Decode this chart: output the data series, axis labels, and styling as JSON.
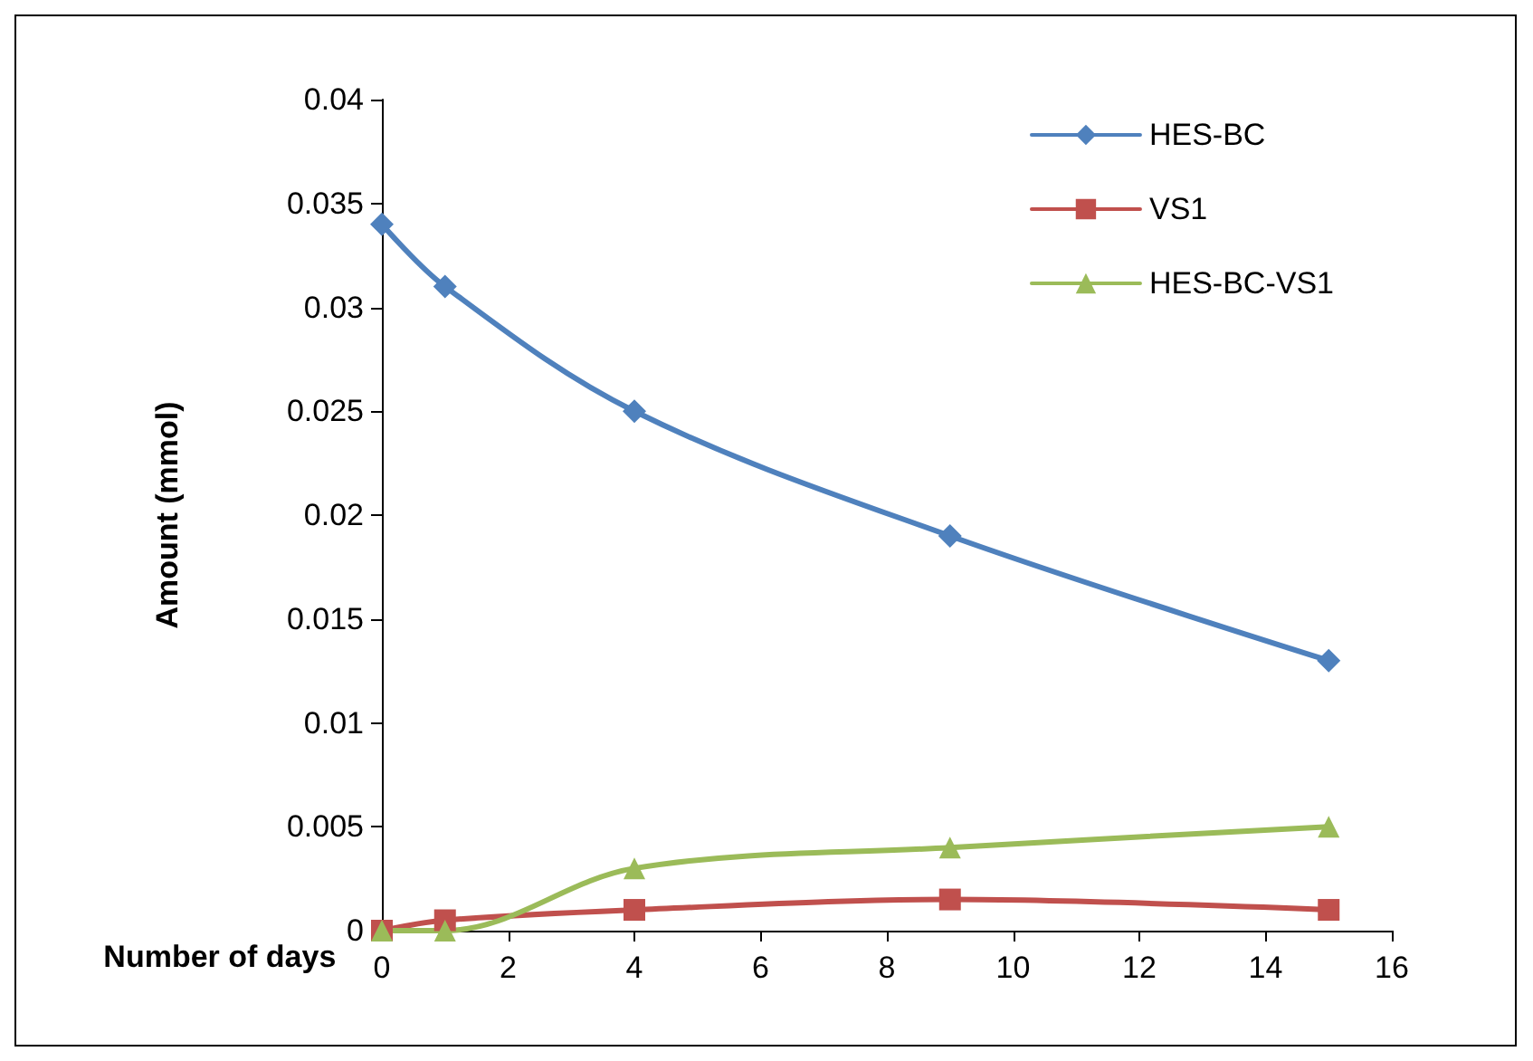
{
  "chart_data": {
    "type": "line",
    "xlabel": "Number of days",
    "ylabel": "Amount (mmol)",
    "x": [
      0,
      1,
      4,
      9,
      15
    ],
    "series": [
      {
        "name": "HES-BC",
        "color": "#4f81bd",
        "marker": "diamond",
        "values": [
          0.034,
          0.031,
          0.025,
          0.019,
          0.013
        ]
      },
      {
        "name": "VS1",
        "color": "#c0504d",
        "marker": "square",
        "values": [
          0,
          0.0005,
          0.001,
          0.0015,
          0.001
        ]
      },
      {
        "name": "HES-BC-VS1",
        "color": "#9bbb59",
        "marker": "triangle",
        "values": [
          0,
          0,
          0.003,
          0.004,
          0.005
        ]
      }
    ],
    "xlim": [
      0,
      16
    ],
    "xticks": [
      0,
      2,
      4,
      6,
      8,
      10,
      12,
      14,
      16
    ],
    "ylim": [
      0,
      0.04
    ],
    "yticks": [
      0,
      0.005,
      0.01,
      0.015,
      0.02,
      0.025,
      0.03,
      0.035,
      0.04
    ],
    "grid": false,
    "legend": "top right",
    "line_style": "solid"
  }
}
